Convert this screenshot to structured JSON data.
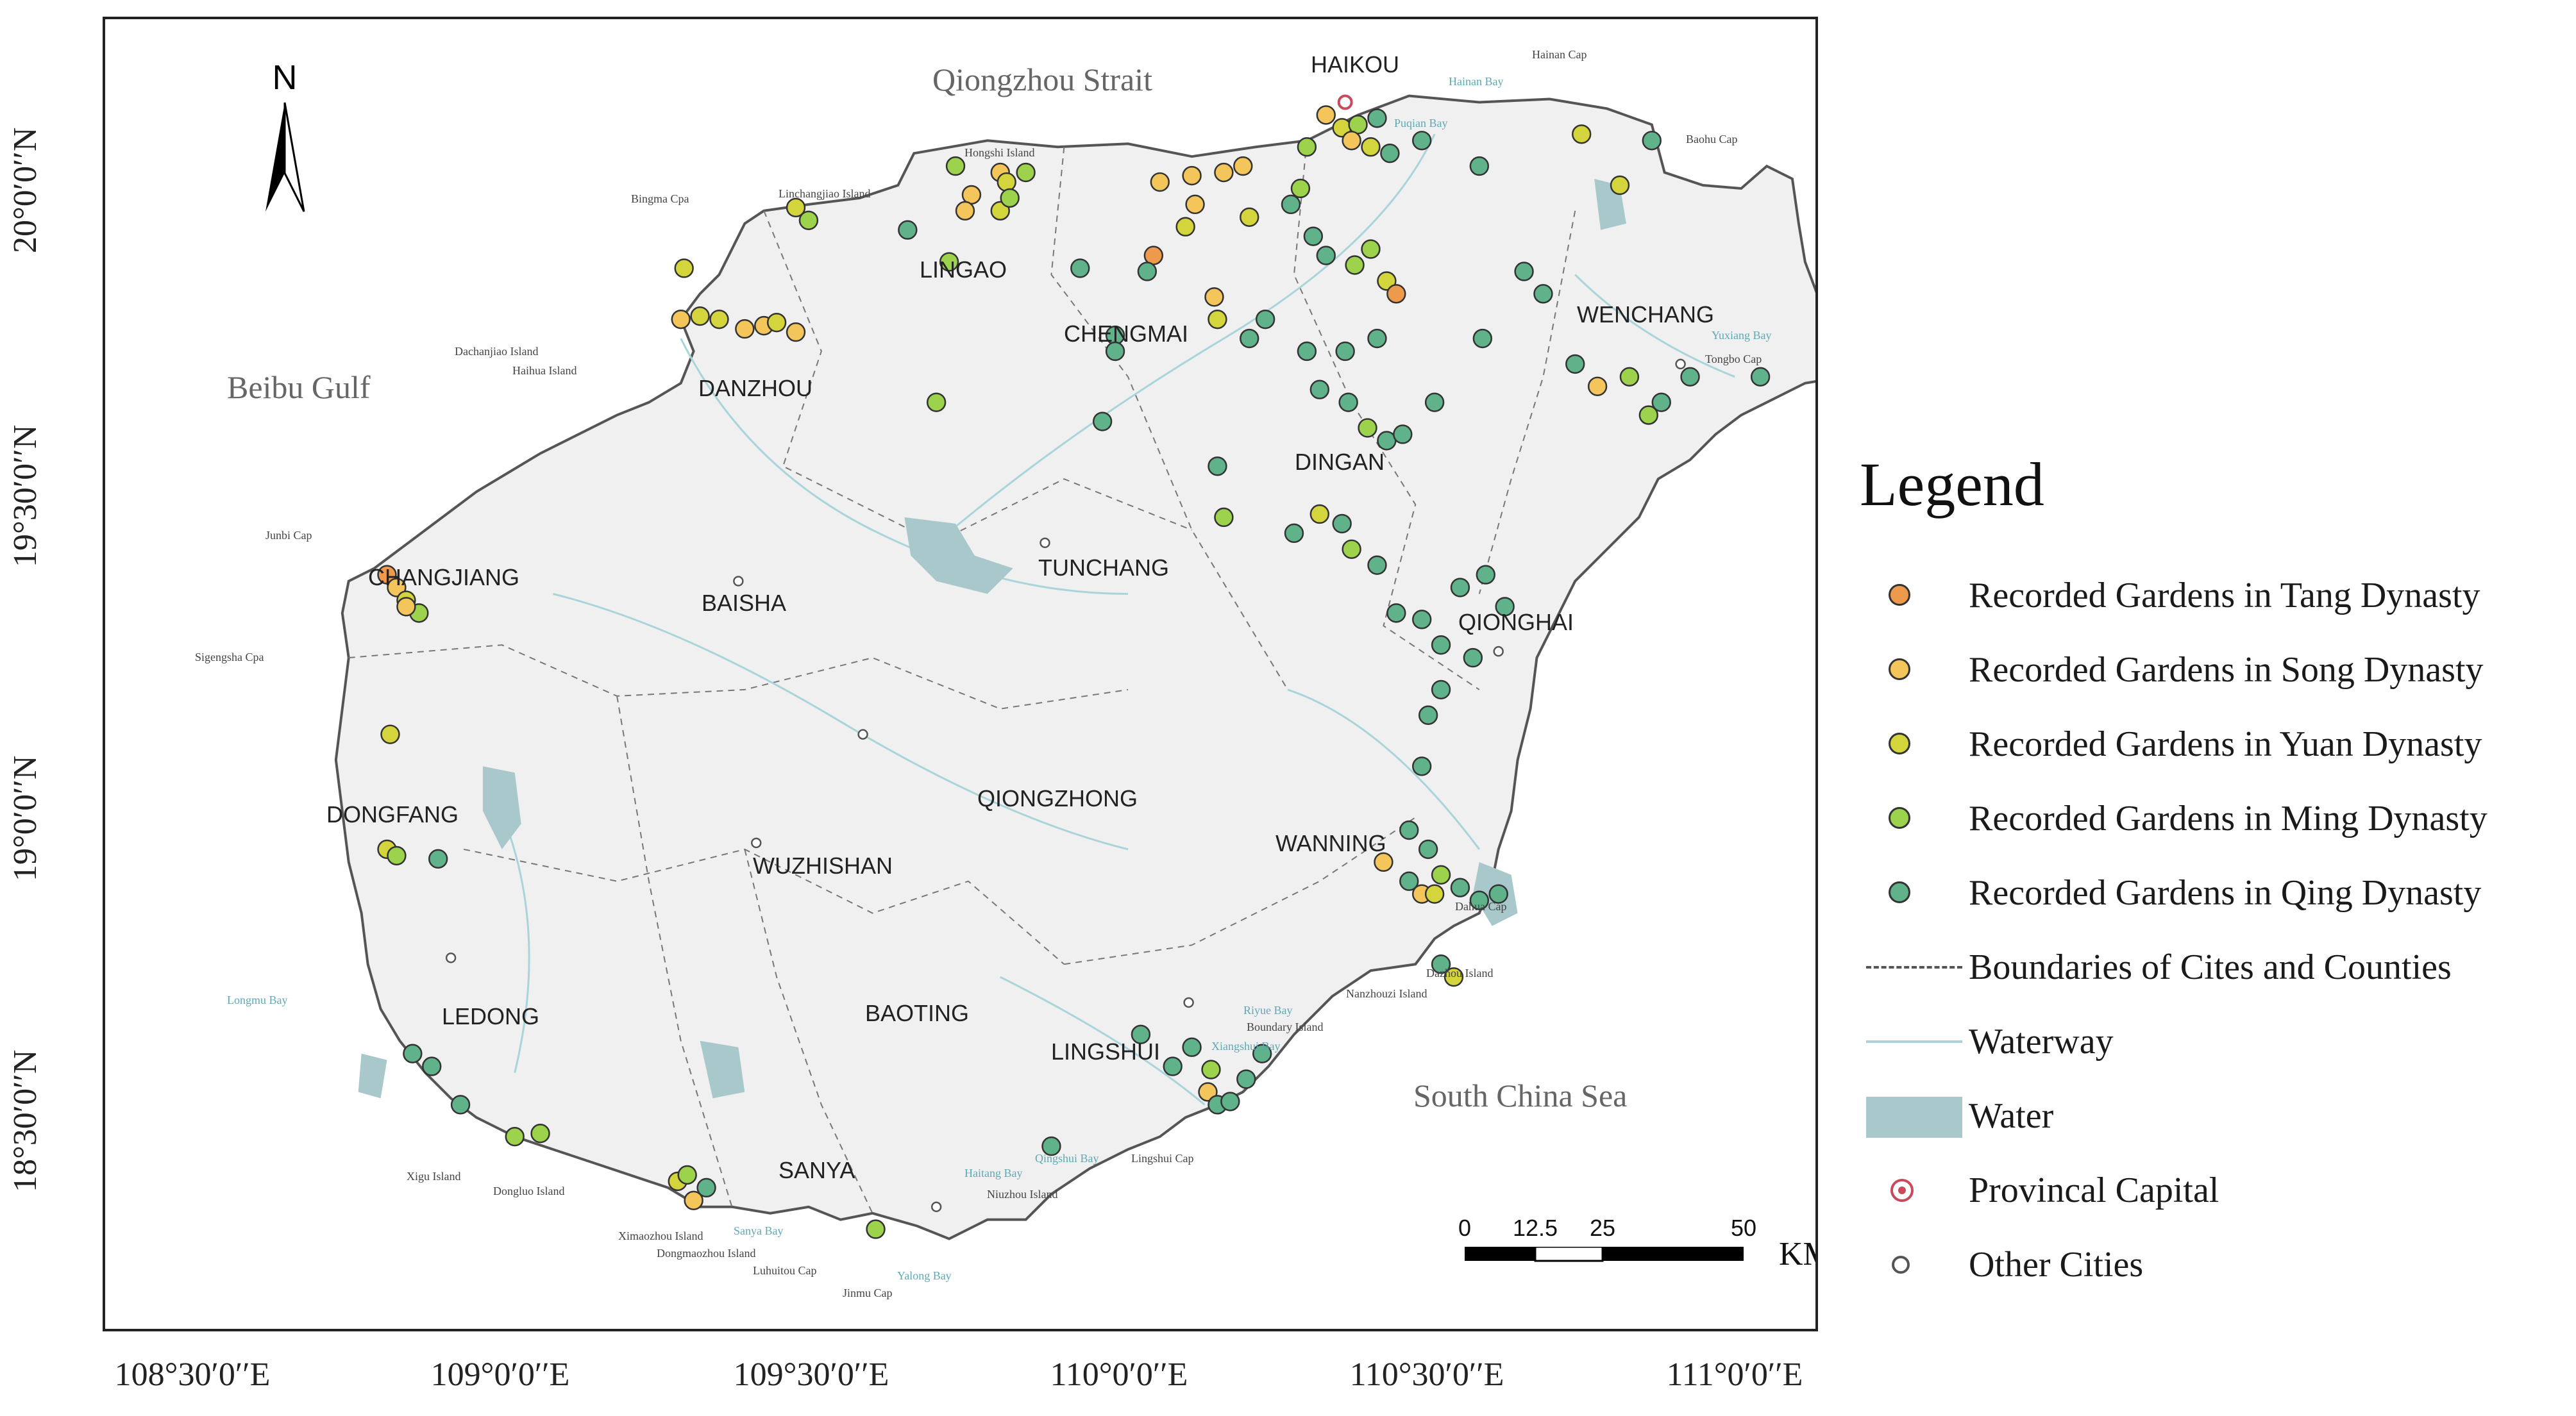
{
  "map": {
    "sea_labels": {
      "north_strait": "Qiongzhou Strait",
      "west_gulf": "Beibu Gulf",
      "south_sea": "South China Sea"
    },
    "cities": {
      "haikou": "HAIKOU",
      "lingao": "LINGAO",
      "chengmai": "CHENGMAI",
      "danzhou": "DANZHOU",
      "wenchang": "WENCHANG",
      "dingan": "DINGAN",
      "changjiang": "CHANGJIANG",
      "baisha": "BAISHA",
      "tunchang": "TUNCHANG",
      "qionghai": "QIONGHAI",
      "dongfang": "DONGFANG",
      "qiongzhong": "QIONGZHONG",
      "wuzhishan": "WUZHISHAN",
      "wanning": "WANNING",
      "ledong": "LEDONG",
      "baoting": "BAOTING",
      "lingshui": "LINGSHUI",
      "sanya": "SANYA"
    },
    "place_names": {
      "hongshi_island": "Hongshi Island",
      "linchangjiao_island": "Linchangjiao Island",
      "bingma_cpa": "Bingma Cpa",
      "dachanjiao_island": "Dachanjiao Island",
      "haihua_island": "Haihua Island",
      "junbi_cap": "Junbi Cap",
      "sigengsha_cpa": "Sigengsha Cpa",
      "hainan_cap": "Hainan Cap",
      "baohu_cap": "Baohu Cap",
      "tongbo_cap": "Tongbo Cap",
      "dahua_cap": "Dahua Cap",
      "dazhou_island": "Dazhou Island",
      "nanzhouzi_island": "Nanzhouzi Island",
      "boundary_island": "Boundary Island",
      "lingshui_cap": "Lingshui Cap",
      "niuzhou_island": "Niuzhou Island",
      "xigu_island": "Xigu Island",
      "dongluo_island": "Dongluo Island",
      "ximaozhou_island": "Ximaozhou Island",
      "dongmaozhou_island": "Dongmaozhou Island",
      "luhuitou_cap": "Luhuitou Cap",
      "jinmu_cap": "Jinmu Cap"
    },
    "water_names": {
      "hainan_bay": "Hainan Bay",
      "puqian_bay": "Puqian Bay",
      "yuxiang_bay": "Yuxiang Bay",
      "longmu_bay": "Longmu Bay",
      "riyue_bay": "Riyue Bay",
      "xiangshui_bay": "Xiangshui Bay",
      "qingshui_bay": "Qingshui Bay",
      "haitang_bay": "Haitang Bay",
      "sanya_bay": "Sanya Bay",
      "yalong_bay": "Yalong Bay"
    },
    "north_arrow": "N",
    "scale_bar": {
      "ticks": [
        "0",
        "12.5",
        "25",
        "50"
      ],
      "unit": "KM"
    }
  },
  "axes": {
    "longitude_ticks": [
      "108°30′0′′E",
      "109°0′0′′E",
      "109°30′0′′E",
      "110°0′0′′E",
      "110°30′0′′E",
      "111°0′0′′E"
    ],
    "latitude_ticks": [
      "20°0′0′′N",
      "19°30′0′′N",
      "19°0′0′′N",
      "18°30′0′′N"
    ]
  },
  "legend": {
    "title": "Legend",
    "items": [
      {
        "label": "Recorded Gardens in Tang Dynasty",
        "color": "#ee9a4d"
      },
      {
        "label": "Recorded Gardens in Song Dynasty",
        "color": "#f4c55a"
      },
      {
        "label": "Recorded Gardens in Yuan Dynasty",
        "color": "#d4d43c"
      },
      {
        "label": "Recorded Gardens in Ming Dynasty",
        "color": "#9cd24c"
      },
      {
        "label": "Recorded Gardens in Qing Dynasty",
        "color": "#5fb289"
      },
      {
        "label": "Boundaries of Cites and Counties"
      },
      {
        "label": "Waterway",
        "color": "#a9d4da"
      },
      {
        "label": "Water",
        "color": "#a9c8cb"
      },
      {
        "label": "Provincal Capital",
        "color": "#c94a5a"
      },
      {
        "label": "Other Cities"
      }
    ]
  }
}
